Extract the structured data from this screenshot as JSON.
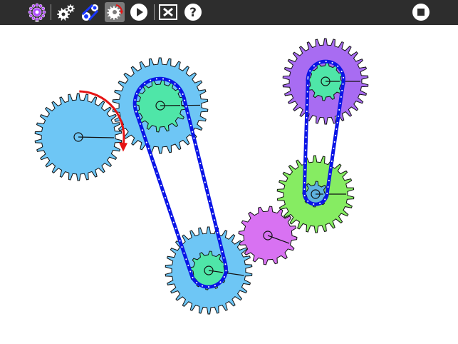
{
  "toolbar": {
    "tools": [
      {
        "name": "gear-settings-tool",
        "icon": "gear-burst-icon",
        "color": "#b04cff",
        "active": false
      },
      {
        "name": "add-gear-tool",
        "icon": "gears-icon",
        "active": false
      },
      {
        "name": "add-chain-tool",
        "icon": "chain-icon",
        "active": false
      },
      {
        "name": "rotate-gear-tool",
        "icon": "rotate-gear-icon",
        "active": true
      },
      {
        "name": "play-tool",
        "icon": "play-icon",
        "active": false
      },
      {
        "name": "clear-tool",
        "icon": "close-box-icon",
        "active": false
      },
      {
        "name": "help-tool",
        "icon": "help-icon",
        "active": false
      },
      {
        "name": "stop-tool",
        "icon": "stop-icon",
        "active": false
      }
    ]
  },
  "colors": {
    "toolbar_bg": "#2d2d2d",
    "chain": "#0a14e6",
    "rotation_indicator": "#e61414",
    "gear_blue": "#6ec6f5",
    "gear_mint": "#4fe6a8",
    "gear_green": "#86ec62",
    "gear_purple": "#a86cf2",
    "gear_magenta": "#d872f2"
  },
  "gears": [
    {
      "id": "g1",
      "teeth": 30,
      "color": "#6ec6f5"
    },
    {
      "id": "g2",
      "teeth": 30,
      "color": "#6ec6f5"
    },
    {
      "id": "g3",
      "teeth": 16,
      "color": "#4fe6a8"
    },
    {
      "id": "g4",
      "teeth": 30,
      "color": "#6ec6f5"
    },
    {
      "id": "g5",
      "teeth": 12,
      "color": "#4fe6a8"
    },
    {
      "id": "g6",
      "teeth": 16,
      "color": "#d872f2"
    },
    {
      "id": "g7",
      "teeth": 30,
      "color": "#a86cf2"
    },
    {
      "id": "g8",
      "teeth": 12,
      "color": "#4fe6a8"
    },
    {
      "id": "g9",
      "teeth": 26,
      "color": "#86ec62"
    },
    {
      "id": "g10",
      "teeth": 8,
      "color": "#5fb3e0"
    }
  ],
  "chains": [
    {
      "id": "chain-left",
      "links": [
        "g3",
        "g5"
      ]
    },
    {
      "id": "chain-right",
      "links": [
        "g8",
        "g10"
      ]
    }
  ]
}
